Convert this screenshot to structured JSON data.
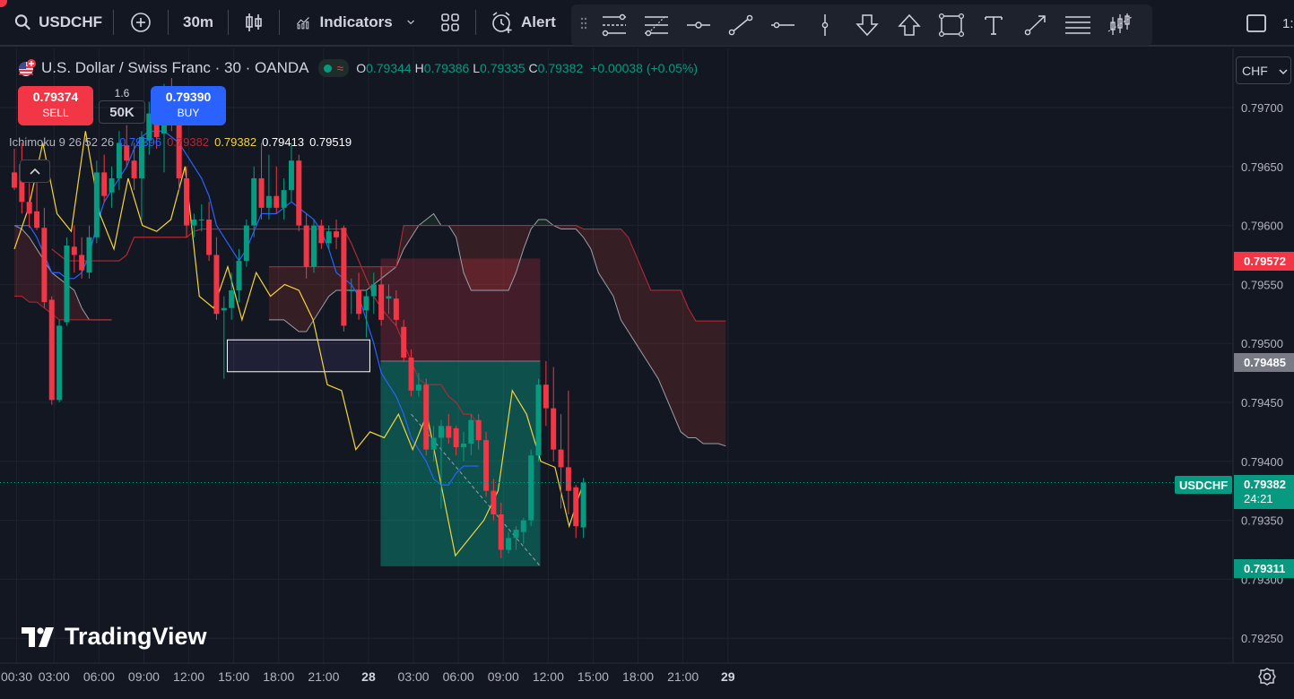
{
  "toolbar": {
    "symbol": "USDCHF",
    "interval": "30m",
    "indicators_label": "Indicators",
    "alert_label": "Alert",
    "right_clip_text": "1:"
  },
  "legend": {
    "title": "U.S. Dollar / Swiss Franc · 30 · OANDA",
    "o_label": "O",
    "o": "0.79344",
    "h_label": "H",
    "h": "0.79386",
    "l_label": "L",
    "l": "0.79335",
    "c_label": "C",
    "c": "0.79382",
    "change": "+0.00038 (+0.05%)"
  },
  "trade": {
    "sell_price": "0.79374",
    "sell_label": "SELL",
    "spread": "1.6",
    "qty": "50K",
    "buy_price": "0.79390",
    "buy_label": "BUY"
  },
  "ichimoku": {
    "label": "Ichimoku 9 26 52 26",
    "values": [
      "0.79396",
      "0.79382",
      "0.79382",
      "0.79413",
      "0.79519"
    ],
    "colors": [
      "#2962ff",
      "#b22833",
      "#f5d43b",
      "#ffffff",
      "#ffffff"
    ]
  },
  "branding": {
    "logo_text": "TradingView"
  },
  "scale": {
    "currency": "CHF",
    "symbol_tag": "USDCHF",
    "countdown": "24:21",
    "current_price": "0.79382",
    "tag_red": "0.79572",
    "tag_gray": "0.79485",
    "tag_green": "0.79311"
  },
  "colors": {
    "background": "#131722",
    "up": "#089981",
    "down": "#f23645",
    "tenkan": "#2962ff",
    "kijun": "#b22833",
    "chikou": "#f5d43b",
    "span_a": "#a5d6a7",
    "span_b": "#ef9a9a"
  },
  "chart_data": {
    "type": "candlestick",
    "title": "U.S. Dollar / Swiss Franc · 30 · OANDA",
    "y_ticks": [
      "0.79700",
      "0.79650",
      "0.79600",
      "0.79550",
      "0.79500",
      "0.79450",
      "0.79400",
      "0.79350",
      "0.79300",
      "0.79250"
    ],
    "ylim": [
      0.79228,
      0.79745
    ],
    "x_ticks": [
      "00:30",
      "03:00",
      "06:00",
      "09:00",
      "12:00",
      "15:00",
      "18:00",
      "21:00",
      "28",
      "03:00",
      "06:00",
      "09:00",
      "12:00",
      "15:00",
      "18:00",
      "21:00",
      "29"
    ],
    "x_tick_index": [
      0,
      5,
      11,
      17,
      23,
      29,
      35,
      41,
      47,
      53,
      59,
      65,
      71,
      77,
      83,
      89,
      95
    ],
    "candles": [
      {
        "o": 0.79645,
        "h": 0.79665,
        "l": 0.7963,
        "c": 0.79632
      },
      {
        "o": 0.79652,
        "h": 0.7967,
        "l": 0.7961,
        "c": 0.7962
      },
      {
        "o": 0.7962,
        "h": 0.79636,
        "l": 0.79598,
        "c": 0.7961
      },
      {
        "o": 0.79612,
        "h": 0.7964,
        "l": 0.79596,
        "c": 0.79598
      },
      {
        "o": 0.79598,
        "h": 0.79615,
        "l": 0.7953,
        "c": 0.79535
      },
      {
        "o": 0.79537,
        "h": 0.7954,
        "l": 0.79448,
        "c": 0.79452
      },
      {
        "o": 0.79452,
        "h": 0.7952,
        "l": 0.7945,
        "c": 0.79515
      },
      {
        "o": 0.79518,
        "h": 0.7959,
        "l": 0.79515,
        "c": 0.79583
      },
      {
        "o": 0.79582,
        "h": 0.796,
        "l": 0.7956,
        "c": 0.79575
      },
      {
        "o": 0.79575,
        "h": 0.7959,
        "l": 0.79555,
        "c": 0.79562
      },
      {
        "o": 0.7956,
        "h": 0.796,
        "l": 0.79555,
        "c": 0.7959
      },
      {
        "o": 0.7959,
        "h": 0.79655,
        "l": 0.79585,
        "c": 0.79645
      },
      {
        "o": 0.79645,
        "h": 0.7966,
        "l": 0.7962,
        "c": 0.79625
      },
      {
        "o": 0.79628,
        "h": 0.7965,
        "l": 0.79615,
        "c": 0.7964
      },
      {
        "o": 0.7964,
        "h": 0.7968,
        "l": 0.7963,
        "c": 0.7967
      },
      {
        "o": 0.79668,
        "h": 0.79685,
        "l": 0.7965,
        "c": 0.79655
      },
      {
        "o": 0.79655,
        "h": 0.7967,
        "l": 0.7963,
        "c": 0.7964
      },
      {
        "o": 0.7964,
        "h": 0.7968,
        "l": 0.79605,
        "c": 0.79675
      },
      {
        "o": 0.79672,
        "h": 0.79705,
        "l": 0.7966,
        "c": 0.79695
      },
      {
        "o": 0.79694,
        "h": 0.79715,
        "l": 0.79665,
        "c": 0.79675
      },
      {
        "o": 0.79678,
        "h": 0.7972,
        "l": 0.79645,
        "c": 0.79705
      },
      {
        "o": 0.79705,
        "h": 0.79725,
        "l": 0.7968,
        "c": 0.797
      },
      {
        "o": 0.79702,
        "h": 0.7971,
        "l": 0.7963,
        "c": 0.7964
      },
      {
        "o": 0.7964,
        "h": 0.7965,
        "l": 0.7959,
        "c": 0.796
      },
      {
        "o": 0.796,
        "h": 0.7961,
        "l": 0.7959,
        "c": 0.79605
      },
      {
        "o": 0.79605,
        "h": 0.79618,
        "l": 0.79595,
        "c": 0.79605
      },
      {
        "o": 0.79605,
        "h": 0.7962,
        "l": 0.7957,
        "c": 0.79575
      },
      {
        "o": 0.79575,
        "h": 0.7959,
        "l": 0.7952,
        "c": 0.79525
      },
      {
        "o": 0.79528,
        "h": 0.7954,
        "l": 0.7947,
        "c": 0.7953
      },
      {
        "o": 0.7953,
        "h": 0.7956,
        "l": 0.7952,
        "c": 0.79545
      },
      {
        "o": 0.79545,
        "h": 0.7958,
        "l": 0.79535,
        "c": 0.7957
      },
      {
        "o": 0.7957,
        "h": 0.79605,
        "l": 0.79565,
        "c": 0.796
      },
      {
        "o": 0.796,
        "h": 0.7965,
        "l": 0.7959,
        "c": 0.7964
      },
      {
        "o": 0.7964,
        "h": 0.7967,
        "l": 0.79605,
        "c": 0.79615
      },
      {
        "o": 0.79615,
        "h": 0.7966,
        "l": 0.79605,
        "c": 0.79625
      },
      {
        "o": 0.79625,
        "h": 0.7965,
        "l": 0.7961,
        "c": 0.79615
      },
      {
        "o": 0.79615,
        "h": 0.7964,
        "l": 0.79605,
        "c": 0.7963
      },
      {
        "o": 0.7963,
        "h": 0.7967,
        "l": 0.7962,
        "c": 0.79655
      },
      {
        "o": 0.79655,
        "h": 0.7966,
        "l": 0.79595,
        "c": 0.796
      },
      {
        "o": 0.796,
        "h": 0.7961,
        "l": 0.79555,
        "c": 0.79565
      },
      {
        "o": 0.79565,
        "h": 0.79605,
        "l": 0.7956,
        "c": 0.796
      },
      {
        "o": 0.796,
        "h": 0.79605,
        "l": 0.7958,
        "c": 0.79585
      },
      {
        "o": 0.79585,
        "h": 0.796,
        "l": 0.7958,
        "c": 0.79595
      },
      {
        "o": 0.79595,
        "h": 0.79605,
        "l": 0.7958,
        "c": 0.7959
      },
      {
        "o": 0.79598,
        "h": 0.796,
        "l": 0.7951,
        "c": 0.79515
      },
      {
        "o": 0.79545,
        "h": 0.79555,
        "l": 0.79525,
        "c": 0.79545
      },
      {
        "o": 0.79545,
        "h": 0.7956,
        "l": 0.7952,
        "c": 0.79525
      },
      {
        "o": 0.79528,
        "h": 0.79545,
        "l": 0.79505,
        "c": 0.7954
      },
      {
        "o": 0.7954,
        "h": 0.7956,
        "l": 0.79525,
        "c": 0.7955
      },
      {
        "o": 0.7955,
        "h": 0.79565,
        "l": 0.79515,
        "c": 0.7952
      },
      {
        "o": 0.79538,
        "h": 0.7955,
        "l": 0.79525,
        "c": 0.7954
      },
      {
        "o": 0.79538,
        "h": 0.79545,
        "l": 0.79515,
        "c": 0.7952
      },
      {
        "o": 0.79514,
        "h": 0.7952,
        "l": 0.79484,
        "c": 0.79488
      },
      {
        "o": 0.79488,
        "h": 0.79495,
        "l": 0.79455,
        "c": 0.7946
      },
      {
        "o": 0.7946,
        "h": 0.79475,
        "l": 0.79455,
        "c": 0.79465
      },
      {
        "o": 0.79465,
        "h": 0.7947,
        "l": 0.79405,
        "c": 0.7941
      },
      {
        "o": 0.7941,
        "h": 0.7943,
        "l": 0.794,
        "c": 0.7942
      },
      {
        "o": 0.7942,
        "h": 0.79435,
        "l": 0.7936,
        "c": 0.7943
      },
      {
        "o": 0.7943,
        "h": 0.7944,
        "l": 0.79415,
        "c": 0.7942
      },
      {
        "o": 0.79428,
        "h": 0.7943,
        "l": 0.79405,
        "c": 0.79412
      },
      {
        "o": 0.79412,
        "h": 0.79425,
        "l": 0.794,
        "c": 0.79415
      },
      {
        "o": 0.79415,
        "h": 0.7944,
        "l": 0.79405,
        "c": 0.79435
      },
      {
        "o": 0.79435,
        "h": 0.7944,
        "l": 0.7941,
        "c": 0.79418
      },
      {
        "o": 0.79418,
        "h": 0.79425,
        "l": 0.7937,
        "c": 0.79375
      },
      {
        "o": 0.79375,
        "h": 0.79385,
        "l": 0.7935,
        "c": 0.79355
      },
      {
        "o": 0.79355,
        "h": 0.79365,
        "l": 0.79318,
        "c": 0.79325
      },
      {
        "o": 0.79325,
        "h": 0.7934,
        "l": 0.79322,
        "c": 0.79335
      },
      {
        "o": 0.79335,
        "h": 0.79345,
        "l": 0.79325,
        "c": 0.79342
      },
      {
        "o": 0.7934,
        "h": 0.79352,
        "l": 0.7933,
        "c": 0.7935
      },
      {
        "o": 0.7935,
        "h": 0.7941,
        "l": 0.79345,
        "c": 0.79405
      },
      {
        "o": 0.79405,
        "h": 0.7947,
        "l": 0.794,
        "c": 0.79465
      },
      {
        "o": 0.79465,
        "h": 0.79485,
        "l": 0.7943,
        "c": 0.79445
      },
      {
        "o": 0.79445,
        "h": 0.7948,
        "l": 0.794,
        "c": 0.7941
      },
      {
        "o": 0.7941,
        "h": 0.7944,
        "l": 0.7936,
        "c": 0.79395
      },
      {
        "o": 0.79395,
        "h": 0.7946,
        "l": 0.79355,
        "c": 0.79375
      },
      {
        "o": 0.79378,
        "h": 0.7938,
        "l": 0.79335,
        "c": 0.79345
      },
      {
        "o": 0.79344,
        "h": 0.79386,
        "l": 0.79335,
        "c": 0.79382
      }
    ],
    "ichimoku": {
      "tenkan": [
        0.796,
        0.796,
        0.796,
        0.7959,
        0.79575,
        0.7956,
        0.7956,
        0.79555,
        0.79555,
        0.7956,
        0.79575,
        0.796,
        0.7962,
        0.7963,
        0.7964,
        0.7965,
        0.79665,
        0.79675,
        0.7968,
        0.7968,
        0.7968,
        0.79675,
        0.7967,
        0.7966,
        0.7965,
        0.7964,
        0.79625,
        0.796,
        0.7959,
        0.7958,
        0.7957,
        0.7958,
        0.79595,
        0.7961,
        0.7961,
        0.7961,
        0.79615,
        0.7962,
        0.79615,
        0.7961,
        0.79605,
        0.79595,
        0.7958,
        0.7956,
        0.79555,
        0.7955,
        0.7954,
        0.7952,
        0.795,
        0.79475,
        0.79465,
        0.79455,
        0.7944,
        0.7942,
        0.7941,
        0.794,
        0.79385,
        0.7938,
        0.7938,
        0.7939,
        0.79396,
        0.79396,
        0.79396
      ],
      "tenkan_start": 0,
      "kijun": [
        0.7958,
        0.79575,
        0.7957,
        0.7957,
        0.7957,
        0.7957,
        0.7957,
        0.7957,
        0.7957,
        0.7957,
        0.79575,
        0.7959,
        0.7959,
        0.7959,
        0.7959,
        0.7959,
        0.7959,
        0.7959,
        0.7959,
        0.79595,
        0.79597,
        0.79597,
        0.79597,
        0.79597,
        0.79597,
        0.79597,
        0.79597,
        0.79597,
        0.79597,
        0.79597,
        0.79597,
        0.79597,
        0.79597,
        0.79597,
        0.79597,
        0.79597,
        0.79597,
        0.79597,
        0.79597,
        0.79597,
        0.79585,
        0.7957,
        0.79555,
        0.7954,
        0.7953,
        0.79522,
        0.79515,
        0.795,
        0.79485,
        0.7947,
        0.79465,
        0.79465,
        0.79465,
        0.79455,
        0.7945,
        0.7944,
        0.7944,
        0.7943
      ],
      "kijun_start": 5,
      "span_a": [
        0.7952,
        0.7952,
        0.7952,
        0.79515,
        0.7951,
        0.7951,
        0.7952,
        0.7953,
        0.7954,
        0.79545,
        0.79545,
        0.79545,
        0.79545,
        0.79545,
        0.7955,
        0.79555,
        0.7956,
        0.79565,
        0.7958,
        0.7959,
        0.796,
        0.79605,
        0.7961,
        0.796,
        0.796,
        0.7959,
        0.7956,
        0.79545,
        0.79545,
        0.79545,
        0.79545,
        0.79545,
        0.79545,
        0.7956,
        0.7958,
        0.79597,
        0.79605,
        0.79605,
        0.796,
        0.79597,
        0.79597,
        0.79597,
        0.7959,
        0.7958,
        0.7956,
        0.7955,
        0.7954,
        0.7952,
        0.7951,
        0.795,
        0.7949,
        0.7948,
        0.7947,
        0.79455,
        0.7944,
        0.79425,
        0.7942,
        0.7942,
        0.79415,
        0.79415,
        0.79415,
        0.79413
      ],
      "span_b": [
        0.79565,
        0.79565,
        0.79565,
        0.79565,
        0.79565,
        0.79565,
        0.79565,
        0.79565,
        0.79565,
        0.79565,
        0.79565,
        0.79565,
        0.79565,
        0.79565,
        0.79565,
        0.79565,
        0.79565,
        0.79565,
        0.796,
        0.796,
        0.796,
        0.796,
        0.796,
        0.796,
        0.796,
        0.796,
        0.796,
        0.796,
        0.796,
        0.796,
        0.796,
        0.796,
        0.796,
        0.796,
        0.796,
        0.796,
        0.796,
        0.796,
        0.796,
        0.796,
        0.796,
        0.796,
        0.79597,
        0.79597,
        0.79597,
        0.79597,
        0.79597,
        0.79597,
        0.7959,
        0.79575,
        0.7956,
        0.79545,
        0.79545,
        0.79545,
        0.79545,
        0.79545,
        0.7953,
        0.79519,
        0.79519,
        0.79519,
        0.79519,
        0.79519
      ],
      "cloud_start": 34,
      "chikou": [
        0.7958,
        0.79615,
        0.7967,
        0.7961,
        0.79595,
        0.7968,
        0.7961,
        0.7958,
        0.7964,
        0.796,
        0.79595,
        0.79605,
        0.7965,
        0.7954,
        0.7953,
        0.79565,
        0.7952,
        0.7956,
        0.7954,
        0.7955,
        0.79545,
        0.7952,
        0.79465,
        0.7946,
        0.7941,
        0.79425,
        0.7942,
        0.7944,
        0.7941,
        0.7944,
        0.7938,
        0.7932,
        0.79335,
        0.7935,
        0.79375,
        0.7946,
        0.7944,
        0.794,
        0.79395,
        0.79345,
        0.79382
      ],
      "chikou_start": 0
    },
    "annotations": {
      "zone_box": {
        "from_index": 27,
        "to_index": 47,
        "top": 0.79503,
        "bottom": 0.79476
      },
      "short_position": {
        "from_index": 47,
        "to_index": 70,
        "stop": 0.79572,
        "entry": 0.79485,
        "target": 0.79311
      },
      "current_price": 0.79382
    }
  }
}
